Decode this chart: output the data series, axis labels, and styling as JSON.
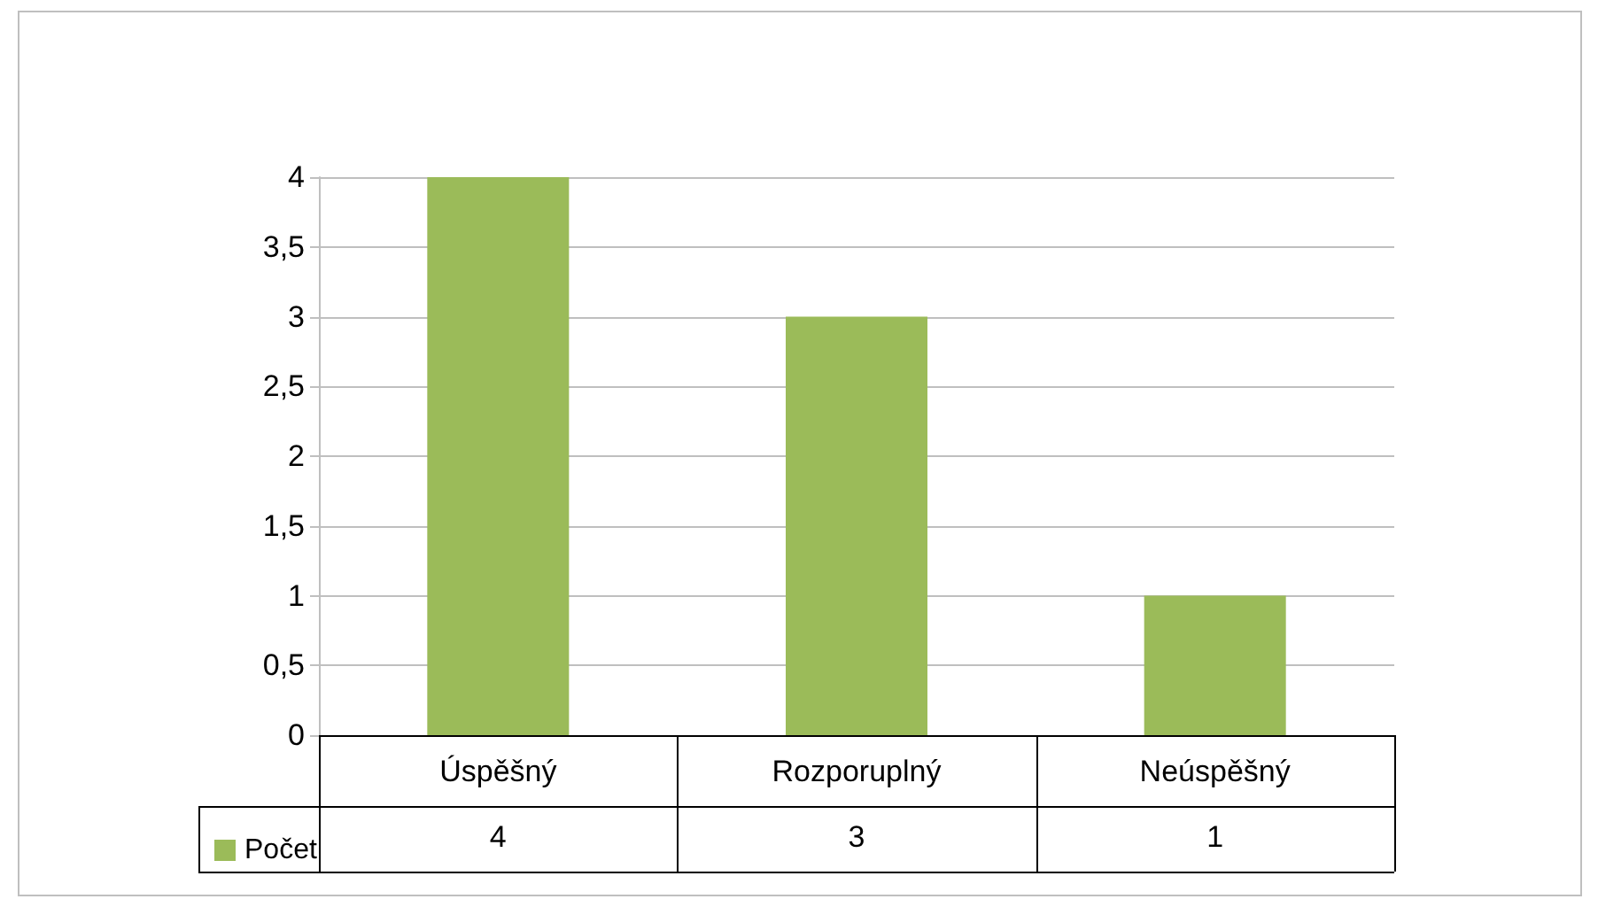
{
  "chart_data": {
    "type": "bar",
    "categories": [
      "Úspěšný",
      "Rozporuplný",
      "Neúspěšný"
    ],
    "series": [
      {
        "name": "Počet",
        "color": "#9bbb59",
        "values": [
          4,
          3,
          1
        ]
      }
    ],
    "ylim": [
      0,
      4
    ],
    "yticks": [
      0,
      {
        "value": 0.5,
        "label": "0,5"
      },
      1,
      {
        "value": 1.5,
        "label": "1,5"
      },
      2,
      {
        "value": 2.5,
        "label": "2,5"
      },
      3,
      {
        "value": 3.5,
        "label": "3,5"
      },
      4
    ],
    "grid": "y",
    "legend": "bottom left",
    "data_labels": true
  }
}
